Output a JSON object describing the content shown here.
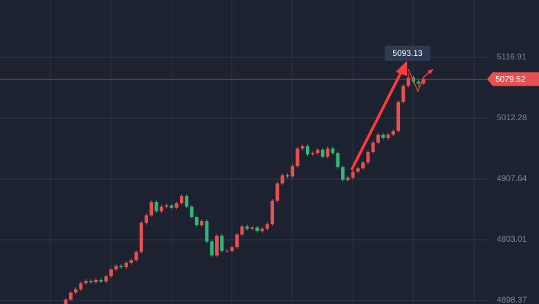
{
  "chart_data": {
    "type": "candlestick",
    "ylim": [
      4692.4,
      5215.6
    ],
    "yticks": [
      5116.91,
      5012.28,
      4907.64,
      4803.01,
      4698.37
    ],
    "grid": true,
    "up_color": "#e8504f",
    "down_color": "#2bb87a",
    "last_price": 5079.52,
    "annotation": 5093.13,
    "series": [
      {
        "open": [
          4690,
          4700,
          4712,
          4718,
          4728,
          4732,
          4730,
          4734,
          4731,
          4740,
          4752,
          4758,
          4756,
          4763,
          4768,
          4782,
          4832,
          4845,
          4868,
          4852,
          4860,
          4862,
          4858,
          4866,
          4878,
          4860,
          4842,
          4828,
          4835,
          4800,
          4776,
          4810,
          4784,
          4784,
          4790,
          4812,
          4826,
          4822,
          4824,
          4818,
          4822,
          4830,
          4870,
          4900,
          4914,
          4912,
          4930,
          4960,
          4964,
          4950,
          4952,
          4958,
          4946,
          4960,
          4952,
          4928,
          4906,
          4910,
          4920,
          4926,
          4936,
          4954,
          4970,
          4984,
          4978,
          4984,
          4990,
          5040,
          5068,
          5082,
          5075,
          5072
        ],
        "high": [
          4703,
          4715,
          4721,
          4731,
          4735,
          4735,
          4737,
          4737,
          4743,
          4755,
          4761,
          4761,
          4766,
          4771,
          4785,
          4835,
          4848,
          4871,
          4871,
          4863,
          4865,
          4865,
          4869,
          4881,
          4881,
          4863,
          4845,
          4838,
          4838,
          4803,
          4813,
          4813,
          4787,
          4793,
          4815,
          4829,
          4829,
          4827,
          4827,
          4825,
          4833,
          4873,
          4903,
          4917,
          4917,
          4933,
          4963,
          4967,
          4967,
          4955,
          4961,
          4961,
          4963,
          4963,
          4955,
          4931,
          4913,
          4923,
          4929,
          4939,
          4957,
          4973,
          4987,
          4987,
          4987,
          4993,
          5043,
          5071,
          5090,
          5085,
          5078,
          5083
        ],
        "low": [
          4687,
          4697,
          4709,
          4715,
          4725,
          4727,
          4727,
          4728,
          4728,
          4737,
          4749,
          4753,
          4753,
          4760,
          4765,
          4779,
          4829,
          4842,
          4849,
          4849,
          4857,
          4855,
          4855,
          4863,
          4857,
          4839,
          4825,
          4825,
          4797,
          4773,
          4773,
          4781,
          4781,
          4781,
          4787,
          4809,
          4819,
          4819,
          4815,
          4815,
          4819,
          4827,
          4867,
          4897,
          4909,
          4909,
          4927,
          4957,
          4947,
          4947,
          4949,
          4943,
          4943,
          4949,
          4925,
          4903,
          4903,
          4907,
          4917,
          4923,
          4933,
          4951,
          4967,
          4975,
          4975,
          4981,
          4987,
          5037,
          5065,
          5072,
          5066,
          5069
        ],
        "close": [
          4700,
          4712,
          4718,
          4728,
          4732,
          4730,
          4734,
          4731,
          4740,
          4752,
          4758,
          4756,
          4763,
          4768,
          4782,
          4832,
          4845,
          4868,
          4852,
          4860,
          4862,
          4858,
          4866,
          4878,
          4860,
          4842,
          4828,
          4835,
          4800,
          4776,
          4810,
          4784,
          4784,
          4790,
          4812,
          4826,
          4822,
          4824,
          4818,
          4822,
          4830,
          4870,
          4900,
          4914,
          4912,
          4930,
          4960,
          4964,
          4950,
          4952,
          4958,
          4946,
          4960,
          4952,
          4928,
          4906,
          4910,
          4920,
          4926,
          4936,
          4954,
          4970,
          4984,
          4978,
          4984,
          4990,
          5040,
          5068,
          5082,
          5075,
          5072,
          5080
        ]
      }
    ]
  }
}
